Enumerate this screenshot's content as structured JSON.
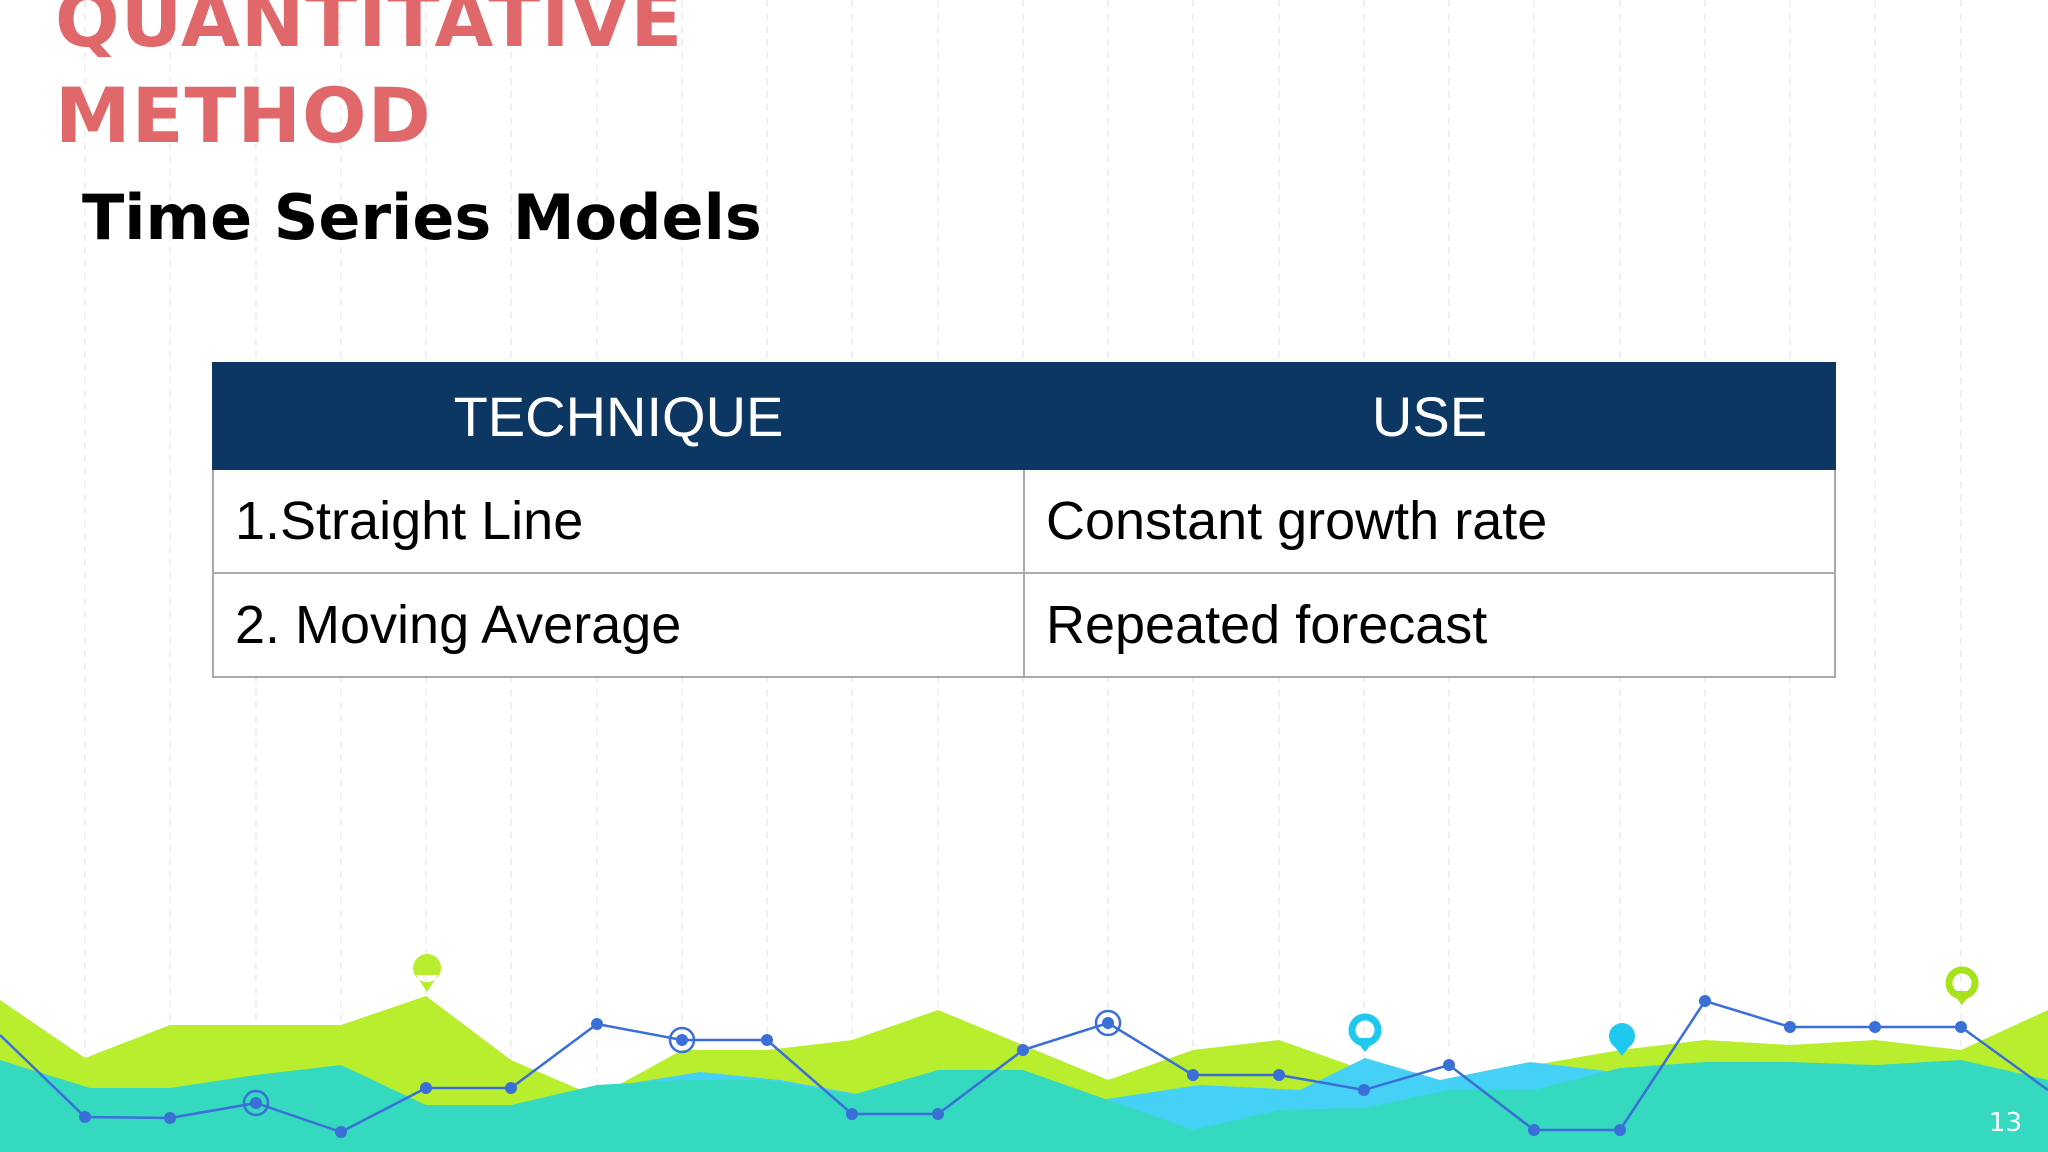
{
  "slide": {
    "heading_line1": "QUANTITATIVE",
    "heading_line2": "METHOD",
    "subtitle": "Time Series Models",
    "page_number": "13"
  },
  "table": {
    "headers": [
      "TECHNIQUE",
      "USE"
    ],
    "rows": [
      [
        "1.Straight Line",
        "Constant growth rate"
      ],
      [
        "2. Moving Average",
        "Repeated forecast"
      ]
    ]
  },
  "colors": {
    "heading": "#e0686b",
    "table_header_bg": "#0b3762",
    "lime": "#b8ee2e",
    "teal": "#35d9bf",
    "sky": "#45d0f5",
    "line": "#3a6fd8"
  },
  "icons": [
    "map-pin-icon",
    "target-marker-icon"
  ]
}
